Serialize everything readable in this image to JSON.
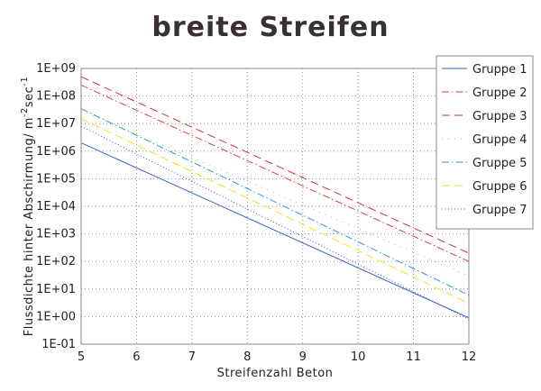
{
  "chart_data": {
    "type": "line",
    "title": "breite Streifen",
    "xlabel": "Streifenzahl Beton",
    "ylabel_main": "Flussdichte hinter Abschirmung/ m",
    "ylabel_unit_sup1": "-2",
    "ylabel_unit_mid": "sec",
    "ylabel_unit_sup2": "-1",
    "xlim": [
      5,
      12
    ],
    "ylim_log10": [
      -1,
      9
    ],
    "y_scale": "log",
    "x_ticks": [
      "5",
      "6",
      "7",
      "8",
      "9",
      "10",
      "11",
      "12"
    ],
    "y_ticks": [
      "1E-01",
      "1E+00",
      "1E+01",
      "1E+02",
      "1E+03",
      "1E+04",
      "1E+05",
      "1E+06",
      "1E+07",
      "1E+08",
      "1E+09"
    ],
    "grid": true,
    "legend_position": "right",
    "series": [
      {
        "name": "Gruppe 1",
        "color": "#3b5fc8",
        "style": "solid",
        "x": [
          5,
          12
        ],
        "y": [
          2000000,
          0.9
        ]
      },
      {
        "name": "Gruppe 2",
        "color": "#d84040",
        "style": "dashdot",
        "x": [
          5,
          12
        ],
        "y": [
          250000000,
          100
        ]
      },
      {
        "name": "Gruppe 3",
        "color": "#d03048",
        "style": "dash",
        "x": [
          5,
          12
        ],
        "y": [
          500000000,
          200
        ]
      },
      {
        "name": "Gruppe 4",
        "color": "#e0a060",
        "style": "dot",
        "x": [
          5,
          12
        ],
        "y": [
          30000000,
          30
        ]
      },
      {
        "name": "Gruppe 5",
        "color": "#2a9ad0",
        "style": "dashdot",
        "x": [
          5,
          12
        ],
        "y": [
          35000000,
          6
        ]
      },
      {
        "name": "Gruppe 6",
        "color": "#f0e020",
        "style": "dash",
        "x": [
          5,
          12
        ],
        "y": [
          15000000,
          3
        ]
      },
      {
        "name": "Gruppe 7",
        "color": "#5050c0",
        "style": "densedot",
        "x": [
          5,
          12
        ],
        "y": [
          8000000,
          0.8
        ]
      }
    ]
  }
}
